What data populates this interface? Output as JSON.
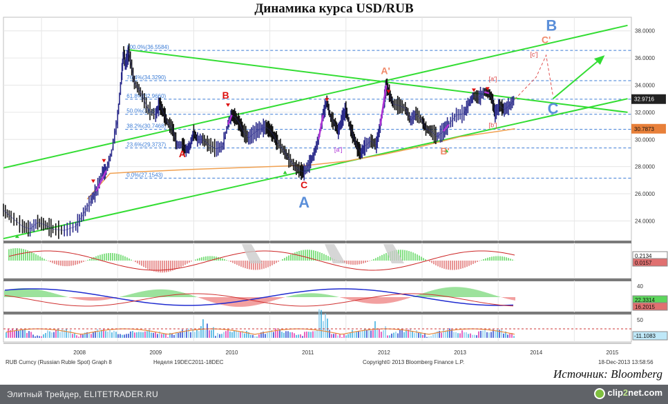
{
  "title": "Динамика курса USD/RUB",
  "source": "Источник: Bloomberg",
  "footer": {
    "site": "Элитный Трейдер, ELITETRADER.RU",
    "logo_left": "clip",
    "logo_accent": "2",
    "logo_right": "net.com"
  },
  "meta": {
    "instrument": "RUB Curncy (Russian Ruble Spot) Graph 8",
    "period": "Неделя 19DEC2011-18DEC",
    "copyright": "Copyright© 2013 Bloomberg Finance L.P.",
    "timestamp": "18-Dec-2013 13:58:56"
  },
  "chart_data": [
    {
      "type": "line",
      "x_ticks": [
        "2008",
        "2009",
        "2010",
        "2011",
        "2012",
        "2013",
        "2014",
        "2015"
      ],
      "y_ticks": [
        "24.0000",
        "26.0000",
        "28.0000",
        "30.0000",
        "32.0000",
        "34.0000",
        "36.0000",
        "38.0000"
      ],
      "ylim": [
        22.5,
        39
      ],
      "last_price": "32.9716",
      "ma_value": "30.7873",
      "series": [
        {
          "values": [
            [
              2007.5,
              24.8
            ],
            [
              2007.6,
              24.3
            ],
            [
              2007.75,
              23.6
            ],
            [
              2007.85,
              23.4
            ],
            [
              2007.95,
              23.9
            ],
            [
              2008.05,
              23.7
            ],
            [
              2008.15,
              23.4
            ],
            [
              2008.3,
              23.3
            ],
            [
              2008.45,
              23.6
            ],
            [
              2008.55,
              24.5
            ],
            [
              2008.65,
              25.5
            ],
            [
              2008.72,
              26.2
            ],
            [
              2008.8,
              27.5
            ],
            [
              2008.85,
              27.7
            ],
            [
              2008.92,
              29.0
            ],
            [
              2009.0,
              31.5
            ],
            [
              2009.05,
              34.5
            ],
            [
              2009.08,
              36.5
            ],
            [
              2009.1,
              35.5
            ],
            [
              2009.15,
              36.4
            ],
            [
              2009.22,
              34.2
            ],
            [
              2009.3,
              33.5
            ],
            [
              2009.4,
              32.2
            ],
            [
              2009.5,
              31.8
            ],
            [
              2009.55,
              32.6
            ],
            [
              2009.6,
              32.0
            ],
            [
              2009.65,
              31.3
            ],
            [
              2009.72,
              30.8
            ],
            [
              2009.78,
              29.6
            ],
            [
              2009.85,
              29.6
            ],
            [
              2009.9,
              29.2
            ],
            [
              2009.95,
              29.5
            ],
            [
              2010.0,
              30.5
            ],
            [
              2010.05,
              30.0
            ],
            [
              2010.12,
              30.0
            ],
            [
              2010.2,
              29.6
            ],
            [
              2010.3,
              29.3
            ],
            [
              2010.38,
              29.5
            ],
            [
              2010.45,
              31.1
            ],
            [
              2010.5,
              31.8
            ],
            [
              2010.55,
              31.6
            ],
            [
              2010.6,
              31.2
            ],
            [
              2010.65,
              30.6
            ],
            [
              2010.72,
              30.1
            ],
            [
              2010.8,
              30.5
            ],
            [
              2010.88,
              30.8
            ],
            [
              2010.95,
              30.9
            ],
            [
              2011.0,
              30.7
            ],
            [
              2011.05,
              30.3
            ],
            [
              2011.1,
              29.8
            ],
            [
              2011.18,
              29.2
            ],
            [
              2011.25,
              28.6
            ],
            [
              2011.33,
              28.0
            ],
            [
              2011.4,
              27.7
            ],
            [
              2011.45,
              27.6
            ],
            [
              2011.52,
              28.2
            ],
            [
              2011.58,
              28.9
            ],
            [
              2011.64,
              30.0
            ],
            [
              2011.7,
              31.8
            ],
            [
              2011.75,
              32.8
            ],
            [
              2011.8,
              31.6
            ],
            [
              2011.86,
              31.1
            ],
            [
              2011.9,
              30.6
            ],
            [
              2011.95,
              31.5
            ],
            [
              2012.0,
              32.2
            ],
            [
              2012.05,
              31.0
            ],
            [
              2012.1,
              30.2
            ],
            [
              2012.15,
              29.4
            ],
            [
              2012.2,
              29.0
            ],
            [
              2012.25,
              29.5
            ],
            [
              2012.33,
              29.9
            ],
            [
              2012.4,
              29.6
            ],
            [
              2012.45,
              31.0
            ],
            [
              2012.5,
              32.7
            ],
            [
              2012.53,
              34.0
            ],
            [
              2012.57,
              33.4
            ],
            [
              2012.62,
              32.6
            ],
            [
              2012.7,
              32.5
            ],
            [
              2012.78,
              32.3
            ],
            [
              2012.85,
              31.4
            ],
            [
              2012.92,
              31.9
            ],
            [
              2013.0,
              31.4
            ],
            [
              2013.05,
              30.8
            ],
            [
              2013.12,
              30.6
            ],
            [
              2013.2,
              30.2
            ],
            [
              2013.28,
              30.6
            ],
            [
              2013.35,
              31.1
            ],
            [
              2013.45,
              31.8
            ],
            [
              2013.55,
              31.9
            ],
            [
              2013.62,
              32.7
            ],
            [
              2013.68,
              33.2
            ],
            [
              2013.75,
              33.1
            ],
            [
              2013.82,
              33.5
            ],
            [
              2013.88,
              33.4
            ],
            [
              2013.92,
              33.0
            ],
            [
              2013.96,
              31.9
            ],
            [
              2014.02,
              32.5
            ],
            [
              2014.08,
              32.2
            ],
            [
              2014.15,
              32.5
            ],
            [
              2014.22,
              32.97
            ]
          ]
        }
      ],
      "fib_levels": [
        {
          "label": "100.0%(36.5584)",
          "value": 36.5584
        },
        {
          "label": "76.4%(34.3290)",
          "value": 34.329
        },
        {
          "label": "61.8%(32.9660)",
          "value": 32.966
        },
        {
          "label": "50.0%(31.8563)",
          "value": 31.8563
        },
        {
          "label": "38.2%(30.7468)",
          "value": 30.7468
        },
        {
          "label": "23.6%(29.3737)",
          "value": 29.3737
        },
        {
          "label": "0.0%(27.1543)",
          "value": 27.1543
        }
      ],
      "wave_labels": [
        {
          "text": "A",
          "x": 2009.85,
          "y": 28.7,
          "color": "#dd1111"
        },
        {
          "text": "B",
          "x": 2010.42,
          "y": 33.0,
          "color": "#dd1111"
        },
        {
          "text": "C",
          "x": 2011.45,
          "y": 26.4,
          "color": "#dd1111"
        },
        {
          "text": "A",
          "x": 2011.45,
          "y": 25.0,
          "color": "#5b8fd9"
        },
        {
          "text": "A'",
          "x": 2012.52,
          "y": 34.8,
          "color": "#f08a6a"
        },
        {
          "text": "B'",
          "x": 2013.3,
          "y": 28.9,
          "color": "#f08a6a"
        },
        {
          "text": "C'",
          "x": 2014.63,
          "y": 37.1,
          "color": "#f08a6a"
        },
        {
          "text": "B",
          "x": 2014.7,
          "y": 38.0,
          "color": "#5b8fd9"
        },
        {
          "text": "C",
          "x": 2014.72,
          "y": 31.9,
          "color": "#5b8fd9"
        }
      ],
      "bracket_labels": [
        {
          "text": "[a']",
          "x": 2011.9,
          "y": 29.1
        },
        {
          "text": "[a']",
          "x": 2013.93,
          "y": 34.3
        },
        {
          "text": "[b']",
          "x": 2013.93,
          "y": 30.9
        },
        {
          "text": "[c']",
          "x": 2014.47,
          "y": 36.1
        }
      ]
    },
    {
      "type": "area",
      "name": "indicator-1",
      "values_label": [
        "0.2134",
        "0.0157"
      ]
    },
    {
      "type": "area",
      "name": "indicator-2",
      "y_ticks": [
        "40"
      ],
      "values_label": [
        "22.3314",
        "16.2015"
      ]
    },
    {
      "type": "bar",
      "name": "indicator-3",
      "y_ticks": [
        "50"
      ],
      "values_label": [
        "-11.1083"
      ]
    }
  ],
  "colors": {
    "price": "#2a2a8a",
    "channel": "#33dd33",
    "fib": "#3a7bd5",
    "ma": "#f0a050",
    "last_price_bg": "#222222",
    "ma_tag_bg": "#e8803a",
    "wave_red": "#dd1111",
    "wave_blue": "#5b8fd9",
    "wave_salmon": "#f08a6a"
  }
}
